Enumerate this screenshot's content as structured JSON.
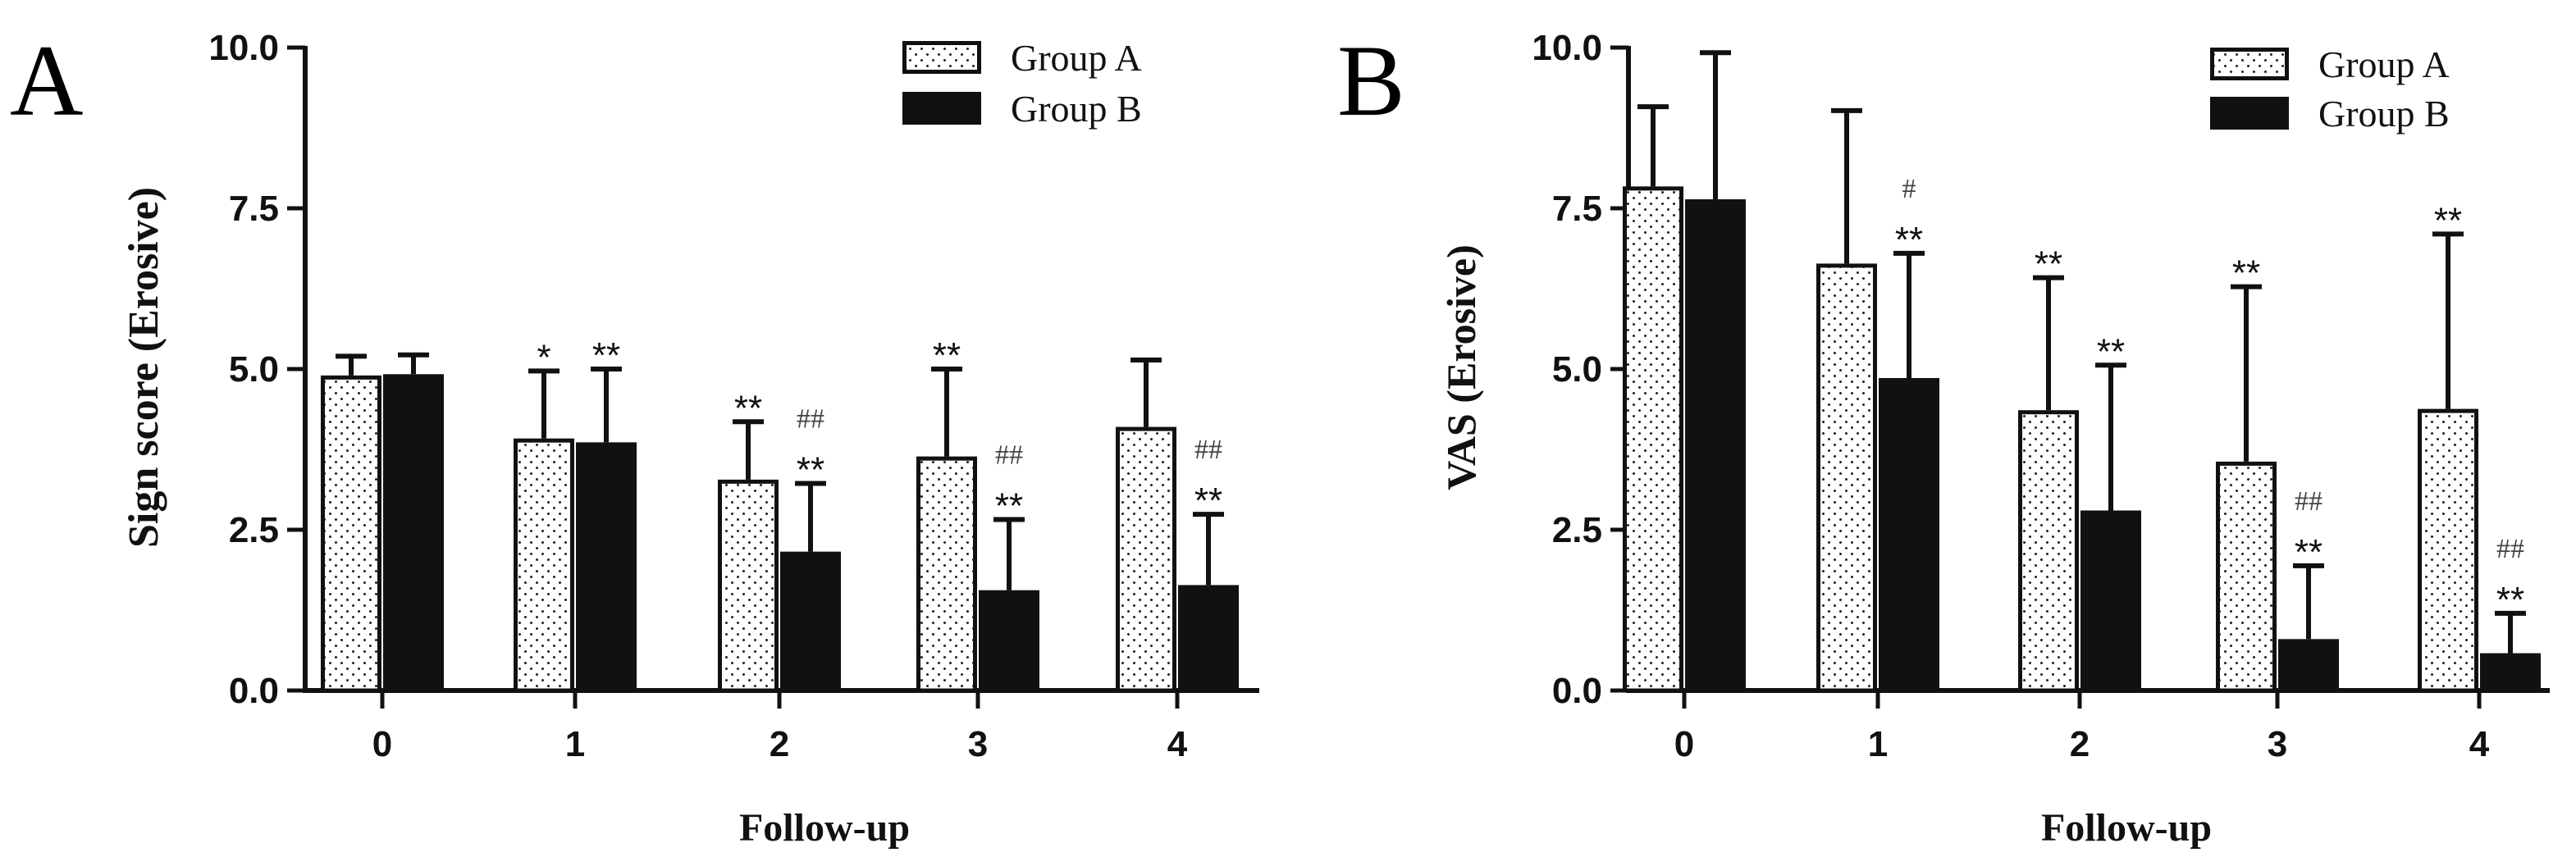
{
  "chart_data": [
    {
      "panel": "A",
      "type": "bar",
      "xlabel": "Follow-up",
      "ylabel": "Sign score (Erosive)",
      "ylim": [
        0,
        10
      ],
      "yticks": [
        "0.0",
        "2.5",
        "5.0",
        "7.5",
        "10.0"
      ],
      "categories": [
        "0",
        "1",
        "2",
        "3",
        "4"
      ],
      "legend_position": "top-right",
      "series": [
        {
          "name": "Group A",
          "pattern": "dotted",
          "values": [
            4.9,
            3.92,
            3.28,
            3.64,
            4.1
          ],
          "errors": [
            0.3,
            1.05,
            0.9,
            1.36,
            1.04
          ],
          "annotations": [
            [],
            [
              "*"
            ],
            [
              "**"
            ],
            [
              "**"
            ],
            []
          ]
        },
        {
          "name": "Group B",
          "pattern": "solid",
          "values": [
            4.92,
            3.86,
            2.16,
            1.56,
            1.64
          ],
          "errors": [
            0.3,
            1.14,
            1.06,
            1.1,
            1.1
          ],
          "annotations": [
            [],
            [
              "**"
            ],
            [
              "##",
              "**"
            ],
            [
              "##",
              "**"
            ],
            [
              "##",
              "**"
            ]
          ]
        }
      ]
    },
    {
      "panel": "B",
      "type": "bar",
      "xlabel": "Follow-up",
      "ylabel": "VAS (Erosive)",
      "ylim": [
        0,
        10
      ],
      "yticks": [
        "0.0",
        "2.5",
        "5.0",
        "7.5",
        "10.0"
      ],
      "categories": [
        "0",
        "1",
        "2",
        "3",
        "4"
      ],
      "legend_position": "top-right",
      "series": [
        {
          "name": "Group A",
          "pattern": "dotted",
          "values": [
            7.84,
            6.64,
            4.36,
            3.56,
            4.38
          ],
          "errors": [
            1.24,
            2.38,
            2.06,
            2.72,
            2.72
          ],
          "annotations": [
            [],
            [],
            [
              "**"
            ],
            [
              "**"
            ],
            [
              "**"
            ]
          ]
        },
        {
          "name": "Group B",
          "pattern": "solid",
          "values": [
            7.64,
            4.86,
            2.8,
            0.8,
            0.58
          ],
          "errors": [
            2.28,
            1.94,
            2.26,
            1.14,
            0.62
          ],
          "annotations": [
            [],
            [
              "#",
              "**"
            ],
            [
              "**"
            ],
            [
              "##",
              "**"
            ],
            [
              "##",
              "**"
            ]
          ]
        }
      ]
    }
  ]
}
